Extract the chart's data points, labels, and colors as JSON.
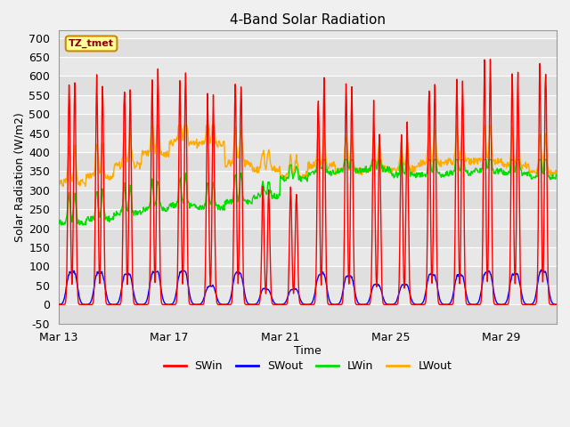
{
  "title": "4-Band Solar Radiation",
  "xlabel": "Time",
  "ylabel": "Solar Radiation (W/m2)",
  "ylim": [
    -50,
    720
  ],
  "yticks": [
    -50,
    0,
    50,
    100,
    150,
    200,
    250,
    300,
    350,
    400,
    450,
    500,
    550,
    600,
    650,
    700
  ],
  "x_tick_labels": [
    "Mar 13",
    "Mar 17",
    "Mar 21",
    "Mar 25",
    "Mar 29"
  ],
  "x_tick_positions": [
    0,
    4,
    8,
    12,
    16
  ],
  "xlim_days": [
    0,
    18
  ],
  "colors": {
    "SWin": "#ff0000",
    "SWout": "#0000ff",
    "LWin": "#00dd00",
    "LWout": "#ffaa00"
  },
  "legend_label": "TZ_tmet",
  "fig_bg": "#f0f0f0",
  "plot_bg": "#e8e8e8"
}
